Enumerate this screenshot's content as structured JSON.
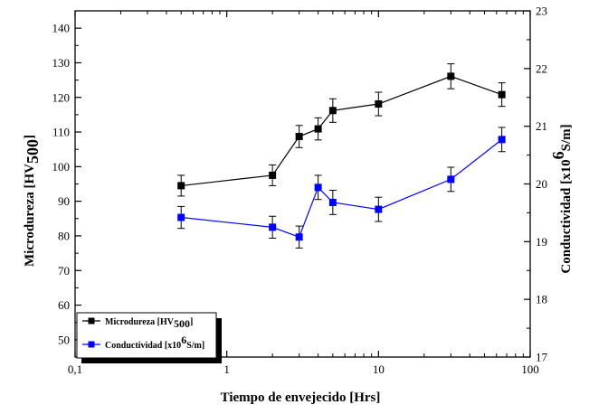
{
  "chart_data": {
    "type": "line",
    "x_axis": {
      "label": "Tiempo de envejecido [Hrs]",
      "scale": "log",
      "range": [
        0.1,
        100
      ],
      "tick_labels": [
        "0,1",
        "1",
        "10",
        "100"
      ]
    },
    "y_left": {
      "label_text": "Microdureza [HV",
      "label_sub": "500",
      "label_close": "]",
      "range": [
        45,
        145
      ],
      "ticks": [
        50,
        60,
        70,
        80,
        90,
        100,
        110,
        120,
        130,
        140
      ]
    },
    "y_right": {
      "label_text": "Conductividad [x10",
      "label_sup": "6",
      "label_unit": "S/m]",
      "range": [
        17,
        23
      ],
      "ticks": [
        17,
        18,
        19,
        20,
        21,
        22,
        23
      ]
    },
    "legend": {
      "placement": "bottom-left",
      "entries": [
        {
          "text": "Microdureza [HV",
          "sub": "500",
          "close": "]"
        },
        {
          "text": "Conductividad [x10",
          "sup": "6",
          "unit": "S/m]"
        }
      ]
    },
    "series": [
      {
        "name": "Microdureza [HV500]",
        "axis": "left",
        "color": "#000000",
        "x": [
          0.5,
          2,
          3,
          4,
          5,
          10,
          30,
          65
        ],
        "y": [
          94.5,
          97.5,
          108.7,
          110.9,
          116.2,
          118.1,
          126.1,
          120.8
        ],
        "err": [
          3,
          3,
          3.2,
          3.2,
          3.4,
          3.4,
          3.6,
          3.4
        ]
      },
      {
        "name": "Conductividad [x10^6 S/m]",
        "axis": "right",
        "color": "#0000ff",
        "x": [
          0.5,
          2,
          3,
          4,
          5,
          10,
          30,
          65
        ],
        "y": [
          19.42,
          19.25,
          19.08,
          19.94,
          19.68,
          19.56,
          20.08,
          20.77
        ],
        "err": [
          0.19,
          0.19,
          0.19,
          0.21,
          0.21,
          0.21,
          0.21,
          0.21
        ]
      }
    ]
  }
}
